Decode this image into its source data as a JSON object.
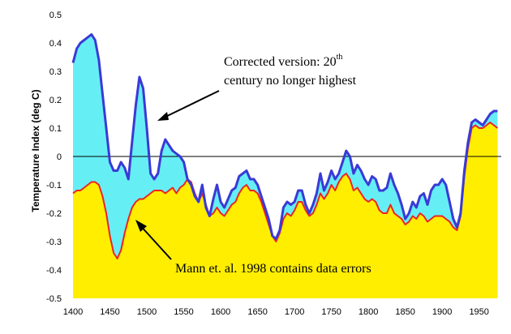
{
  "chart_data": {
    "type": "area",
    "title": "",
    "xlabel": "",
    "ylabel": "Temperature Index (deg C)",
    "xlim": [
      1400,
      1980
    ],
    "ylim": [
      -0.5,
      0.5
    ],
    "x_ticks": [
      "1400",
      "1450",
      "1500",
      "1550",
      "1600",
      "1650",
      "1700",
      "1750",
      "1800",
      "1850",
      "1900",
      "1950"
    ],
    "y_ticks": [
      "0.5",
      "0.4",
      "0.3",
      "0.2",
      "0.1",
      "0",
      "-0.1",
      "-0.2",
      "-0.3",
      "-0.4",
      "-0.5"
    ],
    "grid": false,
    "legend": "none",
    "colors": {
      "corrected_line": "#3a3ad6",
      "corrected_fill": "#66eef5",
      "mann_line": "#ee2222",
      "mann_fill": "#ffee00",
      "zero_line": "#000000"
    },
    "series": [
      {
        "x": [
          1400,
          1405,
          1410,
          1415,
          1420,
          1425,
          1430,
          1435,
          1440,
          1445,
          1450,
          1455,
          1460,
          1465,
          1470,
          1475,
          1480,
          1485,
          1490,
          1495,
          1500,
          1505,
          1510,
          1515,
          1520,
          1525,
          1530,
          1535,
          1540,
          1545,
          1550,
          1555,
          1560,
          1565,
          1570,
          1575,
          1580,
          1585,
          1590,
          1595,
          1600,
          1605,
          1610,
          1615,
          1620,
          1625,
          1630,
          1635,
          1640,
          1645,
          1650,
          1655,
          1660,
          1665,
          1670,
          1675,
          1680,
          1685,
          1690,
          1695,
          1700,
          1705,
          1710,
          1715,
          1720,
          1725,
          1730,
          1735,
          1740,
          1745,
          1750,
          1755,
          1760,
          1765,
          1770,
          1775,
          1780,
          1785,
          1790,
          1795,
          1800,
          1805,
          1810,
          1815,
          1820,
          1825,
          1830,
          1835,
          1840,
          1845,
          1850,
          1855,
          1860,
          1865,
          1870,
          1875,
          1880,
          1885,
          1890,
          1895,
          1900,
          1905,
          1910,
          1915,
          1920,
          1925,
          1930,
          1935,
          1940,
          1945,
          1950,
          1955,
          1960,
          1965,
          1970,
          1975
        ],
        "values": [
          0.33,
          0.38,
          0.4,
          0.41,
          0.42,
          0.43,
          0.41,
          0.34,
          0.22,
          0.1,
          -0.02,
          -0.05,
          -0.05,
          -0.02,
          -0.04,
          -0.08,
          0.05,
          0.18,
          0.28,
          0.24,
          0.1,
          -0.06,
          -0.08,
          -0.06,
          0.02,
          0.06,
          0.04,
          0.02,
          0.01,
          0.0,
          -0.02,
          -0.08,
          -0.1,
          -0.14,
          -0.16,
          -0.1,
          -0.18,
          -0.21,
          -0.15,
          -0.1,
          -0.16,
          -0.18,
          -0.15,
          -0.12,
          -0.11,
          -0.07,
          -0.06,
          -0.05,
          -0.08,
          -0.08,
          -0.1,
          -0.14,
          -0.18,
          -0.22,
          -0.28,
          -0.29,
          -0.26,
          -0.18,
          -0.16,
          -0.17,
          -0.16,
          -0.12,
          -0.12,
          -0.17,
          -0.2,
          -0.17,
          -0.13,
          -0.06,
          -0.12,
          -0.09,
          -0.05,
          -0.08,
          -0.06,
          -0.02,
          0.02,
          0.0,
          -0.06,
          -0.03,
          -0.05,
          -0.08,
          -0.1,
          -0.07,
          -0.08,
          -0.12,
          -0.12,
          -0.11,
          -0.06,
          -0.1,
          -0.13,
          -0.17,
          -0.22,
          -0.2,
          -0.16,
          -0.18,
          -0.14,
          -0.13,
          -0.17,
          -0.12,
          -0.1,
          -0.1,
          -0.08,
          -0.1,
          -0.16,
          -0.22,
          -0.25,
          -0.2,
          -0.05,
          0.05,
          0.12,
          0.13,
          0.12,
          0.11,
          0.13,
          0.15,
          0.16,
          0.16
        ]
      },
      {
        "x": [
          1400,
          1405,
          1410,
          1415,
          1420,
          1425,
          1430,
          1435,
          1440,
          1445,
          1450,
          1455,
          1460,
          1465,
          1470,
          1475,
          1480,
          1485,
          1490,
          1495,
          1500,
          1505,
          1510,
          1515,
          1520,
          1525,
          1530,
          1535,
          1540,
          1545,
          1550,
          1555,
          1560,
          1565,
          1570,
          1575,
          1580,
          1585,
          1590,
          1595,
          1600,
          1605,
          1610,
          1615,
          1620,
          1625,
          1630,
          1635,
          1640,
          1645,
          1650,
          1655,
          1660,
          1665,
          1670,
          1675,
          1680,
          1685,
          1690,
          1695,
          1700,
          1705,
          1710,
          1715,
          1720,
          1725,
          1730,
          1735,
          1740,
          1745,
          1750,
          1755,
          1760,
          1765,
          1770,
          1775,
          1780,
          1785,
          1790,
          1795,
          1800,
          1805,
          1810,
          1815,
          1820,
          1825,
          1830,
          1835,
          1840,
          1845,
          1850,
          1855,
          1860,
          1865,
          1870,
          1875,
          1880,
          1885,
          1890,
          1895,
          1900,
          1905,
          1910,
          1915,
          1920,
          1925,
          1930,
          1935,
          1940,
          1945,
          1950,
          1955,
          1960,
          1965,
          1970,
          1975
        ],
        "values": [
          -0.13,
          -0.12,
          -0.12,
          -0.11,
          -0.1,
          -0.09,
          -0.09,
          -0.1,
          -0.14,
          -0.2,
          -0.28,
          -0.34,
          -0.36,
          -0.33,
          -0.27,
          -0.22,
          -0.18,
          -0.16,
          -0.15,
          -0.15,
          -0.14,
          -0.13,
          -0.12,
          -0.12,
          -0.12,
          -0.13,
          -0.12,
          -0.11,
          -0.13,
          -0.11,
          -0.1,
          -0.08,
          -0.09,
          -0.13,
          -0.16,
          -0.13,
          -0.17,
          -0.21,
          -0.2,
          -0.18,
          -0.2,
          -0.21,
          -0.19,
          -0.17,
          -0.16,
          -0.13,
          -0.11,
          -0.1,
          -0.12,
          -0.12,
          -0.13,
          -0.16,
          -0.2,
          -0.24,
          -0.28,
          -0.3,
          -0.27,
          -0.22,
          -0.2,
          -0.21,
          -0.19,
          -0.16,
          -0.16,
          -0.19,
          -0.21,
          -0.2,
          -0.17,
          -0.13,
          -0.15,
          -0.13,
          -0.1,
          -0.12,
          -0.09,
          -0.07,
          -0.06,
          -0.08,
          -0.12,
          -0.11,
          -0.13,
          -0.15,
          -0.16,
          -0.15,
          -0.16,
          -0.19,
          -0.2,
          -0.2,
          -0.17,
          -0.2,
          -0.21,
          -0.22,
          -0.24,
          -0.23,
          -0.21,
          -0.22,
          -0.2,
          -0.21,
          -0.23,
          -0.22,
          -0.21,
          -0.21,
          -0.21,
          -0.22,
          -0.23,
          -0.25,
          -0.26,
          -0.21,
          -0.07,
          0.03,
          0.1,
          0.11,
          0.1,
          0.1,
          0.11,
          0.12,
          0.11,
          0.1
        ]
      }
    ],
    "annotations": [
      {
        "id": "corrected",
        "text": "Corrected version: 20",
        "sup": "th",
        "line2": "century no longer highest"
      },
      {
        "id": "mann",
        "text": "Mann et. al. 1998 contains data errors"
      }
    ]
  }
}
